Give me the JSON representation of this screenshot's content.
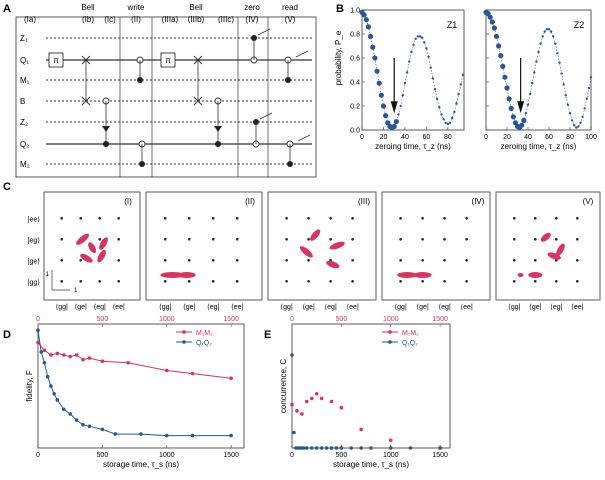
{
  "panel_letters": [
    "A",
    "B",
    "C",
    "D",
    "E"
  ],
  "panel_a": {
    "stage_headers": [
      {
        "top": "Bell",
        "bottom": "(Ib)"
      },
      {
        "top": "write",
        "bottom": "(II)"
      },
      {
        "top": "Bell",
        "bottom": "(IIIb)"
      },
      {
        "top": "zero",
        "bottom": "(IV)"
      },
      {
        "top": "read",
        "bottom": "(V)"
      }
    ],
    "stage_labels": [
      "(Ia)",
      "(Ic)",
      "(IIIa)",
      "(IIIc)"
    ],
    "rows": [
      "Z1",
      "Q1",
      "M1",
      "B",
      "Z2",
      "Q2",
      "M2"
    ],
    "gate_label": "π"
  },
  "panel_b": {
    "ylabel": "probability, P_e",
    "xlabel": "zeroing time, τ_z (ns)",
    "subplots": [
      {
        "label": "Z1",
        "xticks": [
          "0",
          "20",
          "40",
          "60",
          "80"
        ]
      },
      {
        "label": "Z2",
        "xticks": [
          "0",
          "20",
          "40",
          "60",
          "80",
          "100"
        ]
      }
    ],
    "yticks": [
      "0.0",
      "0.2",
      "0.4",
      "0.6",
      "0.8",
      "1.0"
    ]
  },
  "panel_c": {
    "row_labels": [
      "|ee⟩",
      "|eg⟩",
      "|ge⟩",
      "|gg⟩"
    ],
    "col_labels": [
      "⟨gg|",
      "⟨ge|",
      "⟨eg|",
      "⟨ee|"
    ],
    "sublabels": [
      "(I)",
      "(II)",
      "(III)",
      "(IV)",
      "(V)"
    ],
    "scale_labels": [
      "1",
      "1"
    ]
  },
  "chart_data": [
    {
      "type": "scatter",
      "panel": "B-left",
      "subplot_label": "Z1",
      "xlabel": "zeroing time, τ_z (ns)",
      "ylabel": "probability, P_e",
      "xlim": [
        0,
        95
      ],
      "ylim": [
        0,
        1
      ],
      "series": [
        {
          "name": "data",
          "x": [
            0,
            2,
            4,
            6,
            8,
            10,
            12,
            14,
            16,
            18,
            20,
            22,
            24,
            26,
            28,
            30,
            32,
            34,
            36,
            38,
            40,
            42,
            44,
            46,
            48,
            50,
            52,
            54,
            56,
            58,
            60,
            62,
            64,
            66,
            68,
            70,
            72,
            74,
            76,
            78,
            80,
            82,
            84,
            86,
            88,
            90,
            92,
            94
          ],
          "y": [
            0.98,
            0.96,
            0.92,
            0.86,
            0.78,
            0.69,
            0.6,
            0.49,
            0.39,
            0.29,
            0.2,
            0.12,
            0.06,
            0.03,
            0.02,
            0.03,
            0.07,
            0.13,
            0.2,
            0.29,
            0.39,
            0.48,
            0.57,
            0.65,
            0.71,
            0.76,
            0.78,
            0.78,
            0.77,
            0.73,
            0.68,
            0.61,
            0.52,
            0.43,
            0.34,
            0.26,
            0.19,
            0.13,
            0.09,
            0.06,
            0.05,
            0.06,
            0.1,
            0.15,
            0.22,
            0.3,
            0.38,
            0.46
          ]
        }
      ],
      "arrow_at_x": 30
    },
    {
      "type": "scatter",
      "panel": "B-right",
      "subplot_label": "Z2",
      "xlabel": "zeroing time, τ_z (ns)",
      "ylabel": "",
      "xlim": [
        0,
        100
      ],
      "ylim": [
        0,
        1
      ],
      "series": [
        {
          "name": "data",
          "x": [
            0,
            2,
            4,
            6,
            8,
            10,
            12,
            14,
            16,
            18,
            20,
            22,
            24,
            26,
            28,
            30,
            32,
            34,
            36,
            38,
            40,
            42,
            44,
            46,
            48,
            50,
            52,
            54,
            56,
            58,
            60,
            62,
            64,
            66,
            68,
            70,
            72,
            74,
            76,
            78,
            80,
            82,
            84,
            86,
            88,
            90,
            92,
            94,
            96,
            98,
            100
          ],
          "y": [
            0.98,
            0.97,
            0.94,
            0.9,
            0.85,
            0.78,
            0.7,
            0.62,
            0.53,
            0.44,
            0.35,
            0.26,
            0.18,
            0.11,
            0.06,
            0.03,
            0.02,
            0.04,
            0.08,
            0.14,
            0.21,
            0.3,
            0.39,
            0.48,
            0.57,
            0.65,
            0.72,
            0.78,
            0.82,
            0.84,
            0.84,
            0.82,
            0.78,
            0.72,
            0.64,
            0.56,
            0.47,
            0.38,
            0.29,
            0.21,
            0.14,
            0.08,
            0.04,
            0.02,
            0.03,
            0.06,
            0.11,
            0.18,
            0.26,
            0.35,
            0.44
          ]
        }
      ],
      "arrow_at_x": 33
    },
    {
      "type": "scatter",
      "panel": "D",
      "xlabel": "storage time, τ_s (ns)",
      "ylabel": "fidelity, F",
      "xlim": [
        0,
        1600
      ],
      "ylim": [
        0.0,
        0.8
      ],
      "top_xlim": [
        0,
        1600
      ],
      "xticks": [
        "0",
        "500",
        "1000",
        "1500"
      ],
      "series": [
        {
          "name": "M1M2",
          "color": "#d9335f",
          "x": [
            0,
            50,
            100,
            150,
            200,
            250,
            300,
            350,
            400,
            500,
            700,
            1000,
            1200,
            1500
          ],
          "y": [
            0.68,
            0.63,
            0.6,
            0.61,
            0.6,
            0.59,
            0.6,
            0.57,
            0.58,
            0.56,
            0.55,
            0.5,
            0.48,
            0.45
          ]
        },
        {
          "name": "Q1Q2",
          "color": "#27579a",
          "x": [
            0,
            25,
            50,
            75,
            100,
            125,
            150,
            200,
            250,
            300,
            350,
            400,
            500,
            600,
            800,
            1000,
            1200,
            1500
          ],
          "y": [
            0.76,
            0.62,
            0.55,
            0.46,
            0.4,
            0.35,
            0.31,
            0.25,
            0.22,
            0.18,
            0.15,
            0.14,
            0.12,
            0.09,
            0.09,
            0.08,
            0.08,
            0.08
          ]
        }
      ]
    },
    {
      "type": "scatter",
      "panel": "E",
      "xlabel": "storage time, τ_s (ns)",
      "ylabel": "concurrence, C",
      "xlim": [
        0,
        1600
      ],
      "ylim": [
        0.0,
        0.8
      ],
      "top_xlim": [
        0,
        1600
      ],
      "xticks": [
        "0",
        "500",
        "1000",
        "1500"
      ],
      "series": [
        {
          "name": "M1M2",
          "color": "#d9335f",
          "x": [
            0,
            50,
            100,
            150,
            200,
            250,
            300,
            400,
            500,
            700,
            1000,
            1500
          ],
          "y": [
            0.28,
            0.24,
            0.22,
            0.3,
            0.32,
            0.35,
            0.32,
            0.3,
            0.26,
            0.12,
            0.05,
            0.0
          ]
        },
        {
          "name": "Q1Q2",
          "color": "#27579a",
          "x": [
            0,
            20,
            40,
            60,
            80,
            100,
            120,
            150,
            200,
            250,
            300,
            350,
            400,
            450,
            500,
            600,
            700,
            800,
            1000,
            1200,
            1500
          ],
          "y": [
            0.6,
            0.1,
            0.0,
            0.0,
            0.0,
            0.0,
            0.0,
            0.0,
            0.0,
            0.0,
            0.0,
            0.0,
            0.0,
            0.0,
            0.0,
            0.0,
            0.0,
            0.0,
            0.0,
            0.0,
            0.0
          ]
        }
      ]
    }
  ],
  "colors": {
    "blue": "#27579a",
    "red": "#d9335f",
    "grid": "#999999"
  }
}
